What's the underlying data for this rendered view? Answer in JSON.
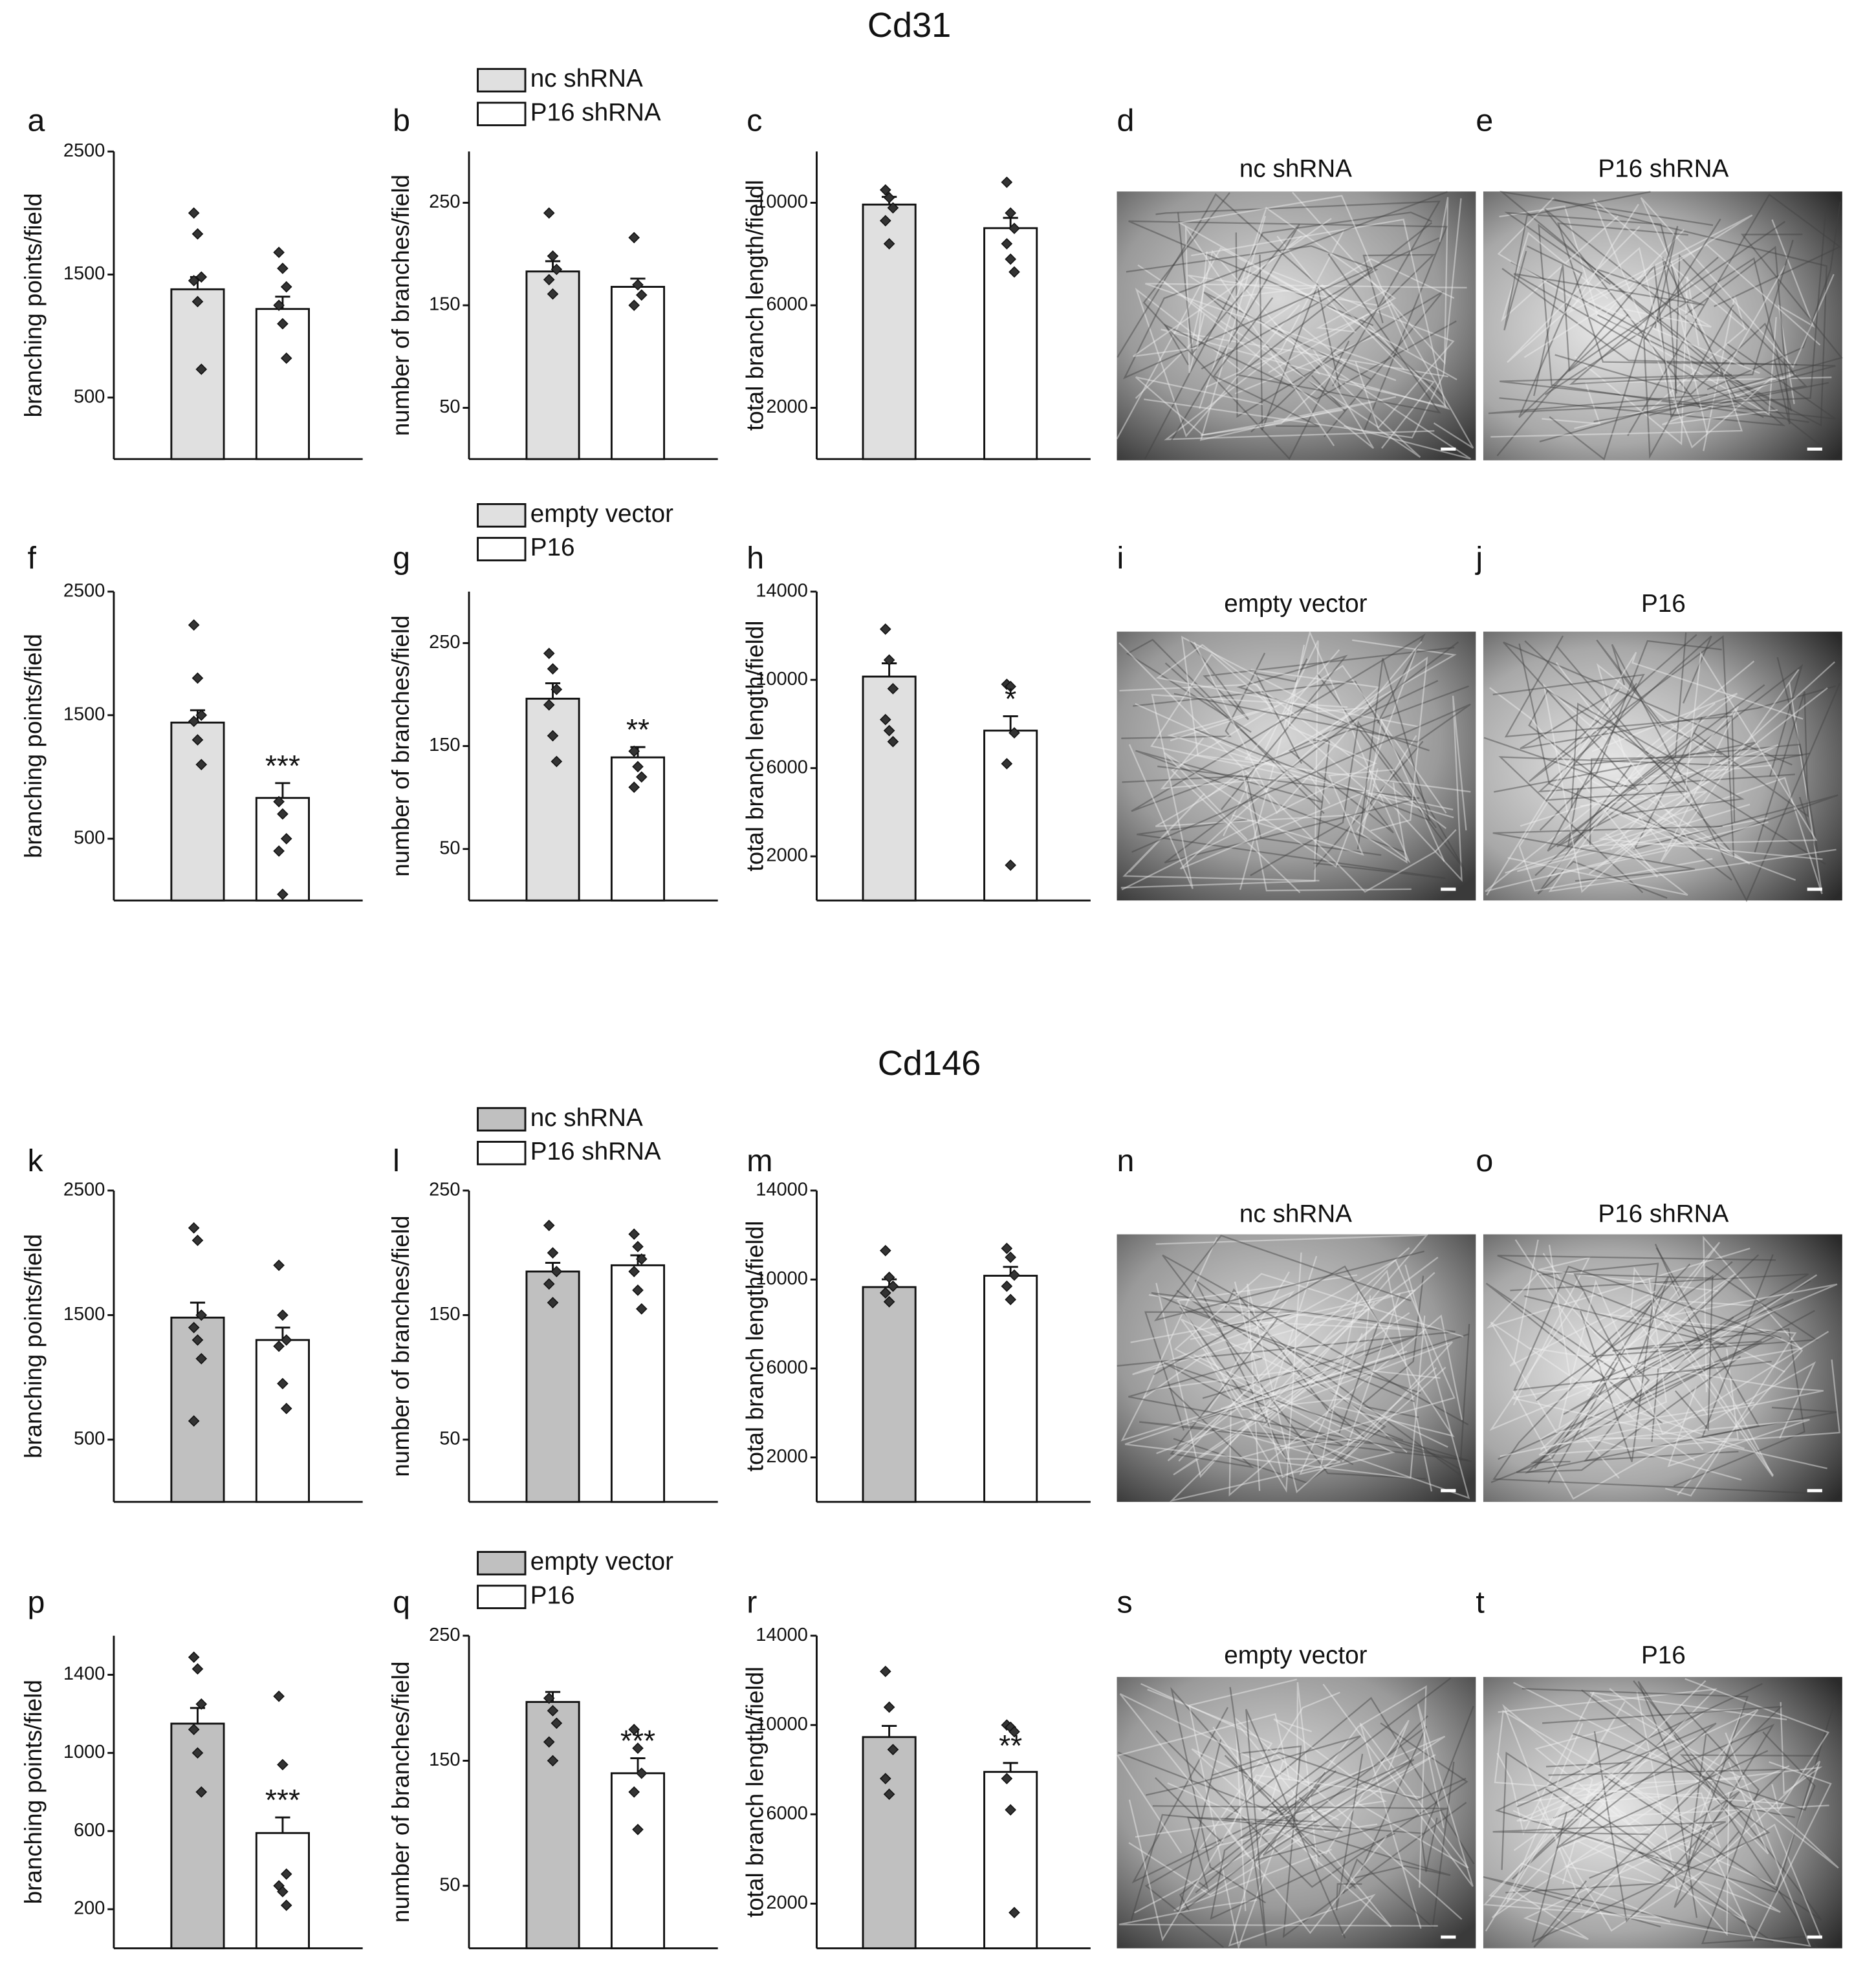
{
  "titles": [
    "Cd31",
    "Cd146"
  ],
  "chart_data": [
    {
      "type": "bar",
      "panel": "a",
      "ylabel": "branching points/field",
      "categories": [
        null,
        null
      ],
      "colors": [
        "#e0e0e0",
        "#ffffff"
      ],
      "values": [
        1380,
        1220
      ],
      "errors": [
        100,
        100
      ],
      "points": [
        [
          2000,
          1830,
          1480,
          1450,
          1280,
          730
        ],
        [
          1680,
          1550,
          1400,
          1250,
          1100,
          820
        ]
      ],
      "ylim": [
        0,
        2500
      ],
      "yticks": [
        500,
        1500,
        2500
      ]
    },
    {
      "type": "bar",
      "panel": "b",
      "ylabel": "number of branches/field",
      "categories": [
        null,
        null
      ],
      "colors": [
        "#e0e0e0",
        "#ffffff"
      ],
      "legend": [
        {
          "name": "nc shRNA",
          "color": "#e0e0e0"
        },
        {
          "name": "P16 shRNA",
          "color": "#ffffff"
        }
      ],
      "values": [
        183,
        168
      ],
      "errors": [
        10,
        8
      ],
      "points": [
        [
          240,
          198,
          185,
          175,
          161
        ],
        [
          216,
          170,
          160,
          150
        ]
      ],
      "ylim": [
        0,
        300
      ],
      "yticks": [
        50,
        150,
        250
      ]
    },
    {
      "type": "bar",
      "panel": "c",
      "ylabel": "total branch length/fieldl",
      "categories": [
        null,
        null
      ],
      "colors": [
        "#e0e0e0",
        "#ffffff"
      ],
      "values": [
        9930,
        9010
      ],
      "errors": [
        300,
        400
      ],
      "points": [
        [
          10500,
          10200,
          9800,
          9300,
          8400
        ],
        [
          10800,
          9600,
          9000,
          8400,
          7800,
          7300
        ]
      ],
      "ylim": [
        0,
        12000
      ],
      "yticks": [
        2000,
        6000,
        10000
      ]
    },
    {
      "type": "bar",
      "panel": "f",
      "ylabel": "branching points/field",
      "categories": [
        null,
        null
      ],
      "colors": [
        "#e0e0e0",
        "#ffffff"
      ],
      "values": [
        1440,
        830
      ],
      "errors": [
        100,
        120
      ],
      "points": [
        [
          2230,
          1800,
          1500,
          1450,
          1300,
          1100
        ],
        [
          800,
          700,
          500,
          400,
          50
        ]
      ],
      "annotation": "***",
      "ylim": [
        0,
        2500
      ],
      "yticks": [
        500,
        1500,
        2500
      ]
    },
    {
      "type": "bar",
      "panel": "g",
      "ylabel": "number of branches/field",
      "categories": [
        null,
        null
      ],
      "colors": [
        "#e0e0e0",
        "#ffffff"
      ],
      "legend": [
        {
          "name": "empty vector",
          "color": "#e0e0e0"
        },
        {
          "name": "P16",
          "color": "#ffffff"
        }
      ],
      "values": [
        196,
        139
      ],
      "errors": [
        15,
        10
      ],
      "points": [
        [
          240,
          225,
          205,
          190,
          160,
          135
        ],
        [
          145,
          130,
          120,
          110
        ]
      ],
      "annotation": "**",
      "ylim": [
        0,
        300
      ],
      "yticks": [
        50,
        150,
        250
      ]
    },
    {
      "type": "bar",
      "panel": "h",
      "ylabel": "total branch length/fieldl",
      "categories": [
        null,
        null
      ],
      "colors": [
        "#e0e0e0",
        "#ffffff"
      ],
      "values": [
        10150,
        7700
      ],
      "errors": [
        600,
        650
      ],
      "points": [
        [
          12300,
          10900,
          9600,
          8200,
          7700,
          7200
        ],
        [
          9800,
          9700,
          7600,
          6200,
          1600
        ]
      ],
      "annotation": "*",
      "ylim": [
        0,
        14000
      ],
      "yticks": [
        2000,
        6000,
        10000,
        14000
      ]
    },
    {
      "type": "bar",
      "panel": "k",
      "ylabel": "branching points/field",
      "categories": [
        null,
        null
      ],
      "colors": [
        "#c0c0c0",
        "#ffffff"
      ],
      "values": [
        1480,
        1300
      ],
      "errors": [
        120,
        100
      ],
      "points": [
        [
          2200,
          2100,
          1500,
          1400,
          1300,
          1150,
          650
        ],
        [
          1900,
          1500,
          1300,
          1250,
          950,
          750
        ]
      ],
      "ylim": [
        0,
        2500
      ],
      "yticks": [
        500,
        1500,
        2500
      ]
    },
    {
      "type": "bar",
      "panel": "l",
      "ylabel": "number of branches/field",
      "categories": [
        null,
        null
      ],
      "colors": [
        "#c0c0c0",
        "#ffffff"
      ],
      "legend": [
        {
          "name": "nc shRNA",
          "color": "#c0c0c0"
        },
        {
          "name": "P16 shRNA",
          "color": "#ffffff"
        }
      ],
      "values": [
        185,
        190
      ],
      "errors": [
        7,
        8
      ],
      "points": [
        [
          222,
          200,
          185,
          175,
          160
        ],
        [
          215,
          205,
          195,
          185,
          170,
          155
        ]
      ],
      "ylim": [
        0,
        250
      ],
      "yticks": [
        50,
        150,
        250
      ]
    },
    {
      "type": "bar",
      "panel": "m",
      "ylabel": "total branch length/fieldl",
      "categories": [
        null,
        null
      ],
      "colors": [
        "#c0c0c0",
        "#ffffff"
      ],
      "values": [
        9660,
        10170
      ],
      "errors": [
        350,
        400
      ],
      "points": [
        [
          11300,
          10100,
          9700,
          9400,
          9000
        ],
        [
          11400,
          11000,
          10200,
          9700,
          9100
        ]
      ],
      "ylim": [
        0,
        14000
      ],
      "yticks": [
        2000,
        6000,
        10000,
        14000
      ]
    },
    {
      "type": "bar",
      "panel": "p",
      "ylabel": "branching points/field",
      "categories": [
        null,
        null
      ],
      "colors": [
        "#c0c0c0",
        "#ffffff"
      ],
      "values": [
        1150,
        590
      ],
      "errors": [
        80,
        80
      ],
      "points": [
        [
          1490,
          1430,
          1250,
          1120,
          1000,
          800
        ],
        [
          1290,
          940,
          380,
          320,
          290,
          220
        ]
      ],
      "annotation": "***",
      "ylim": [
        0,
        1600
      ],
      "yticks": [
        200,
        600,
        1000,
        1400
      ]
    },
    {
      "type": "bar",
      "panel": "q",
      "ylabel": "number of branches/field",
      "categories": [
        null,
        null
      ],
      "colors": [
        "#c0c0c0",
        "#ffffff"
      ],
      "legend": [
        {
          "name": "empty vector",
          "color": "#c0c0c0"
        },
        {
          "name": "P16",
          "color": "#ffffff"
        }
      ],
      "values": [
        197,
        140
      ],
      "errors": [
        8,
        12
      ],
      "points": [
        [
          200,
          190,
          180,
          165,
          150
        ],
        [
          175,
          160,
          140,
          125,
          95
        ]
      ],
      "annotation": "***",
      "ylim": [
        0,
        250
      ],
      "yticks": [
        50,
        150,
        250
      ]
    },
    {
      "type": "bar",
      "panel": "r",
      "ylabel": "total branch length/fieldl",
      "categories": [
        null,
        null
      ],
      "colors": [
        "#c0c0c0",
        "#ffffff"
      ],
      "values": [
        9460,
        7900
      ],
      "errors": [
        500,
        400
      ],
      "points": [
        [
          12400,
          10800,
          8900,
          7600,
          6900
        ],
        [
          10000,
          9900,
          9700,
          7600,
          6200,
          1600
        ]
      ],
      "annotation": "**",
      "ylim": [
        0,
        14000
      ],
      "yticks": [
        2000,
        6000,
        10000,
        14000
      ]
    }
  ],
  "images": [
    {
      "panel": "d",
      "caption": "nc shRNA"
    },
    {
      "panel": "e",
      "caption": "P16 shRNA"
    },
    {
      "panel": "i",
      "caption": "empty vector"
    },
    {
      "panel": "j",
      "caption": "P16"
    },
    {
      "panel": "n",
      "caption": "nc shRNA"
    },
    {
      "panel": "o",
      "caption": "P16 shRNA"
    },
    {
      "panel": "s",
      "caption": "empty vector"
    },
    {
      "panel": "t",
      "caption": "P16"
    }
  ]
}
